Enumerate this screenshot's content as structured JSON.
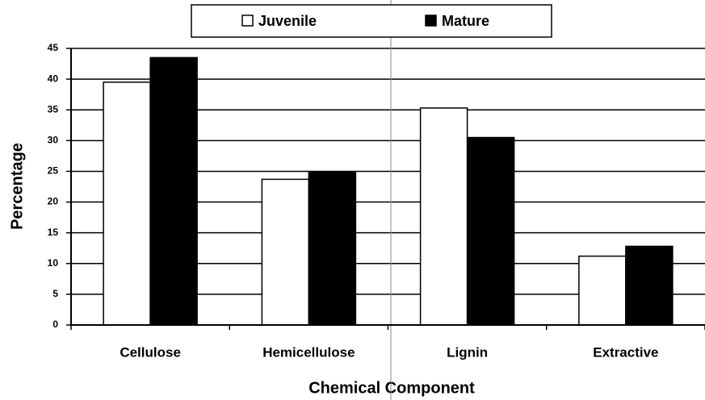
{
  "chart_data": {
    "type": "bar",
    "categories": [
      "Cellulose",
      "Hemicellulose",
      "Lignin",
      "Extractive"
    ],
    "series": [
      {
        "name": "Juvenile",
        "color": "#ffffff",
        "values": [
          39.5,
          23.7,
          35.3,
          11.2
        ]
      },
      {
        "name": "Mature",
        "color": "#000000",
        "values": [
          43.5,
          24.9,
          30.5,
          12.8
        ]
      }
    ],
    "x_label": "Chemical Component",
    "y_label": "Percentage",
    "ylim": [
      0,
      45
    ],
    "yticks": [
      0,
      5,
      10,
      15,
      20,
      25,
      30,
      35,
      40,
      45
    ],
    "grid": true,
    "legend": "top"
  }
}
